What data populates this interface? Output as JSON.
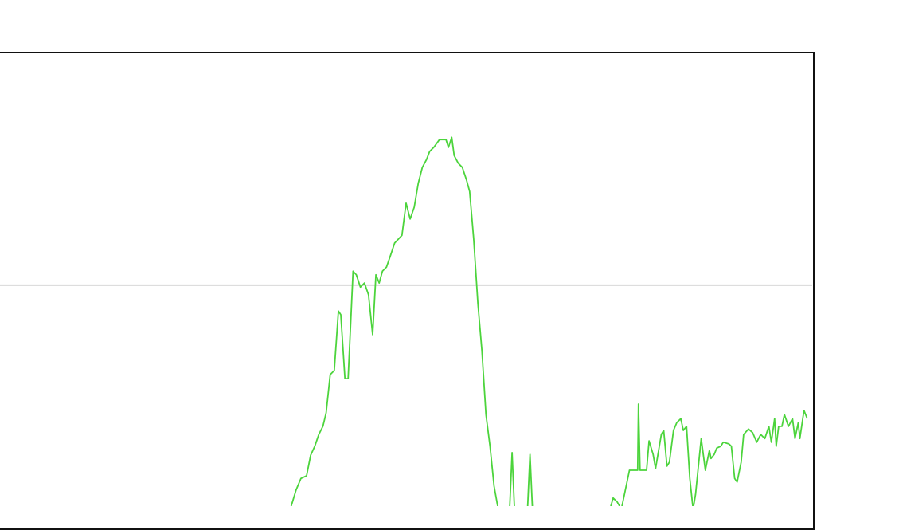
{
  "chart_data": {
    "type": "line",
    "title": "",
    "xlabel": "",
    "ylabel": "",
    "xlim": [
      0,
      100
    ],
    "ylim": [
      0,
      100
    ],
    "grid": true,
    "gridlines_y": [
      48.7
    ],
    "line_color": "#4cd43c",
    "grid_color": "#d8d8d8",
    "frame_color": "#111111",
    "series": [
      {
        "x": [
          35.6,
          36.3,
          36.9,
          37.6,
          38.1,
          38.6,
          39.1,
          39.6,
          40.0,
          40.5,
          41.0,
          41.5,
          41.8,
          42.3,
          42.7,
          43.3,
          43.7,
          44.2,
          44.7,
          45.2,
          45.7,
          46.1,
          46.5,
          46.9,
          47.4,
          47.9,
          48.4,
          49.3,
          49.8,
          50.3,
          50.8,
          51.3,
          51.8,
          52.3,
          52.7,
          53.2,
          53.9,
          54.7,
          55.0,
          55.4,
          55.7,
          56.2,
          56.7,
          57.2,
          57.6,
          58.1,
          58.6,
          59.1,
          59.6,
          60.1,
          60.6,
          61.1,
          62.5,
          62.8,
          63.1,
          64.7,
          65.0,
          65.3,
          74.8,
          75.2,
          75.7,
          76.2,
          77.2,
          78.2,
          78.3,
          78.5,
          79.3,
          79.6,
          80.1,
          80.4,
          81.1,
          81.4,
          81.8,
          82.1,
          82.6,
          83.0,
          83.5,
          83.8,
          84.2,
          84.6,
          85.0,
          85.3,
          86.0,
          86.5,
          87.0,
          87.2,
          87.6,
          87.9,
          88.4,
          88.7,
          89.4,
          89.7,
          90.1,
          90.4,
          90.9,
          91.2,
          91.8,
          92.3,
          92.8,
          93.3,
          93.8,
          94.3,
          94.6,
          95.0,
          95.2,
          95.5,
          95.9,
          96.2,
          96.7,
          97.2,
          97.5,
          97.9,
          98.1,
          98.6,
          99.0
        ],
        "y": [
          0,
          3.5,
          6.1,
          6.7,
          11.2,
          13.2,
          15.8,
          17.6,
          20.6,
          29.0,
          29.9,
          43.0,
          42.2,
          28.1,
          28.1,
          51.8,
          51.0,
          48.3,
          49.2,
          46.6,
          37.8,
          51.0,
          49.2,
          51.8,
          52.7,
          55.3,
          58.0,
          59.7,
          66.8,
          63.3,
          65.9,
          71.2,
          74.7,
          76.4,
          78.2,
          79.1,
          80.8,
          80.8,
          79.1,
          81.3,
          77.3,
          75.6,
          74.7,
          72.0,
          69.4,
          58.9,
          44.8,
          34.3,
          20.2,
          13.2,
          4.4,
          0,
          0,
          11.8,
          0,
          0,
          11.4,
          0,
          0,
          1.8,
          0.9,
          0,
          7.9,
          7.9,
          22.5,
          7.9,
          7.9,
          14.4,
          11.4,
          8.3,
          15.8,
          16.7,
          8.8,
          9.7,
          16.7,
          18.4,
          19.3,
          16.7,
          17.6,
          6.1,
          0,
          2.6,
          14.9,
          7.9,
          12.3,
          10.5,
          11.4,
          12.8,
          13.2,
          14.1,
          13.7,
          13.2,
          6.1,
          5.3,
          9.7,
          15.8,
          17.0,
          16.2,
          14.1,
          15.8,
          14.9,
          17.6,
          14.1,
          19.3,
          13.2,
          17.6,
          17.6,
          20.2,
          17.6,
          19.3,
          14.9,
          18.4,
          14.9,
          21.1,
          19.3
        ]
      }
    ]
  }
}
